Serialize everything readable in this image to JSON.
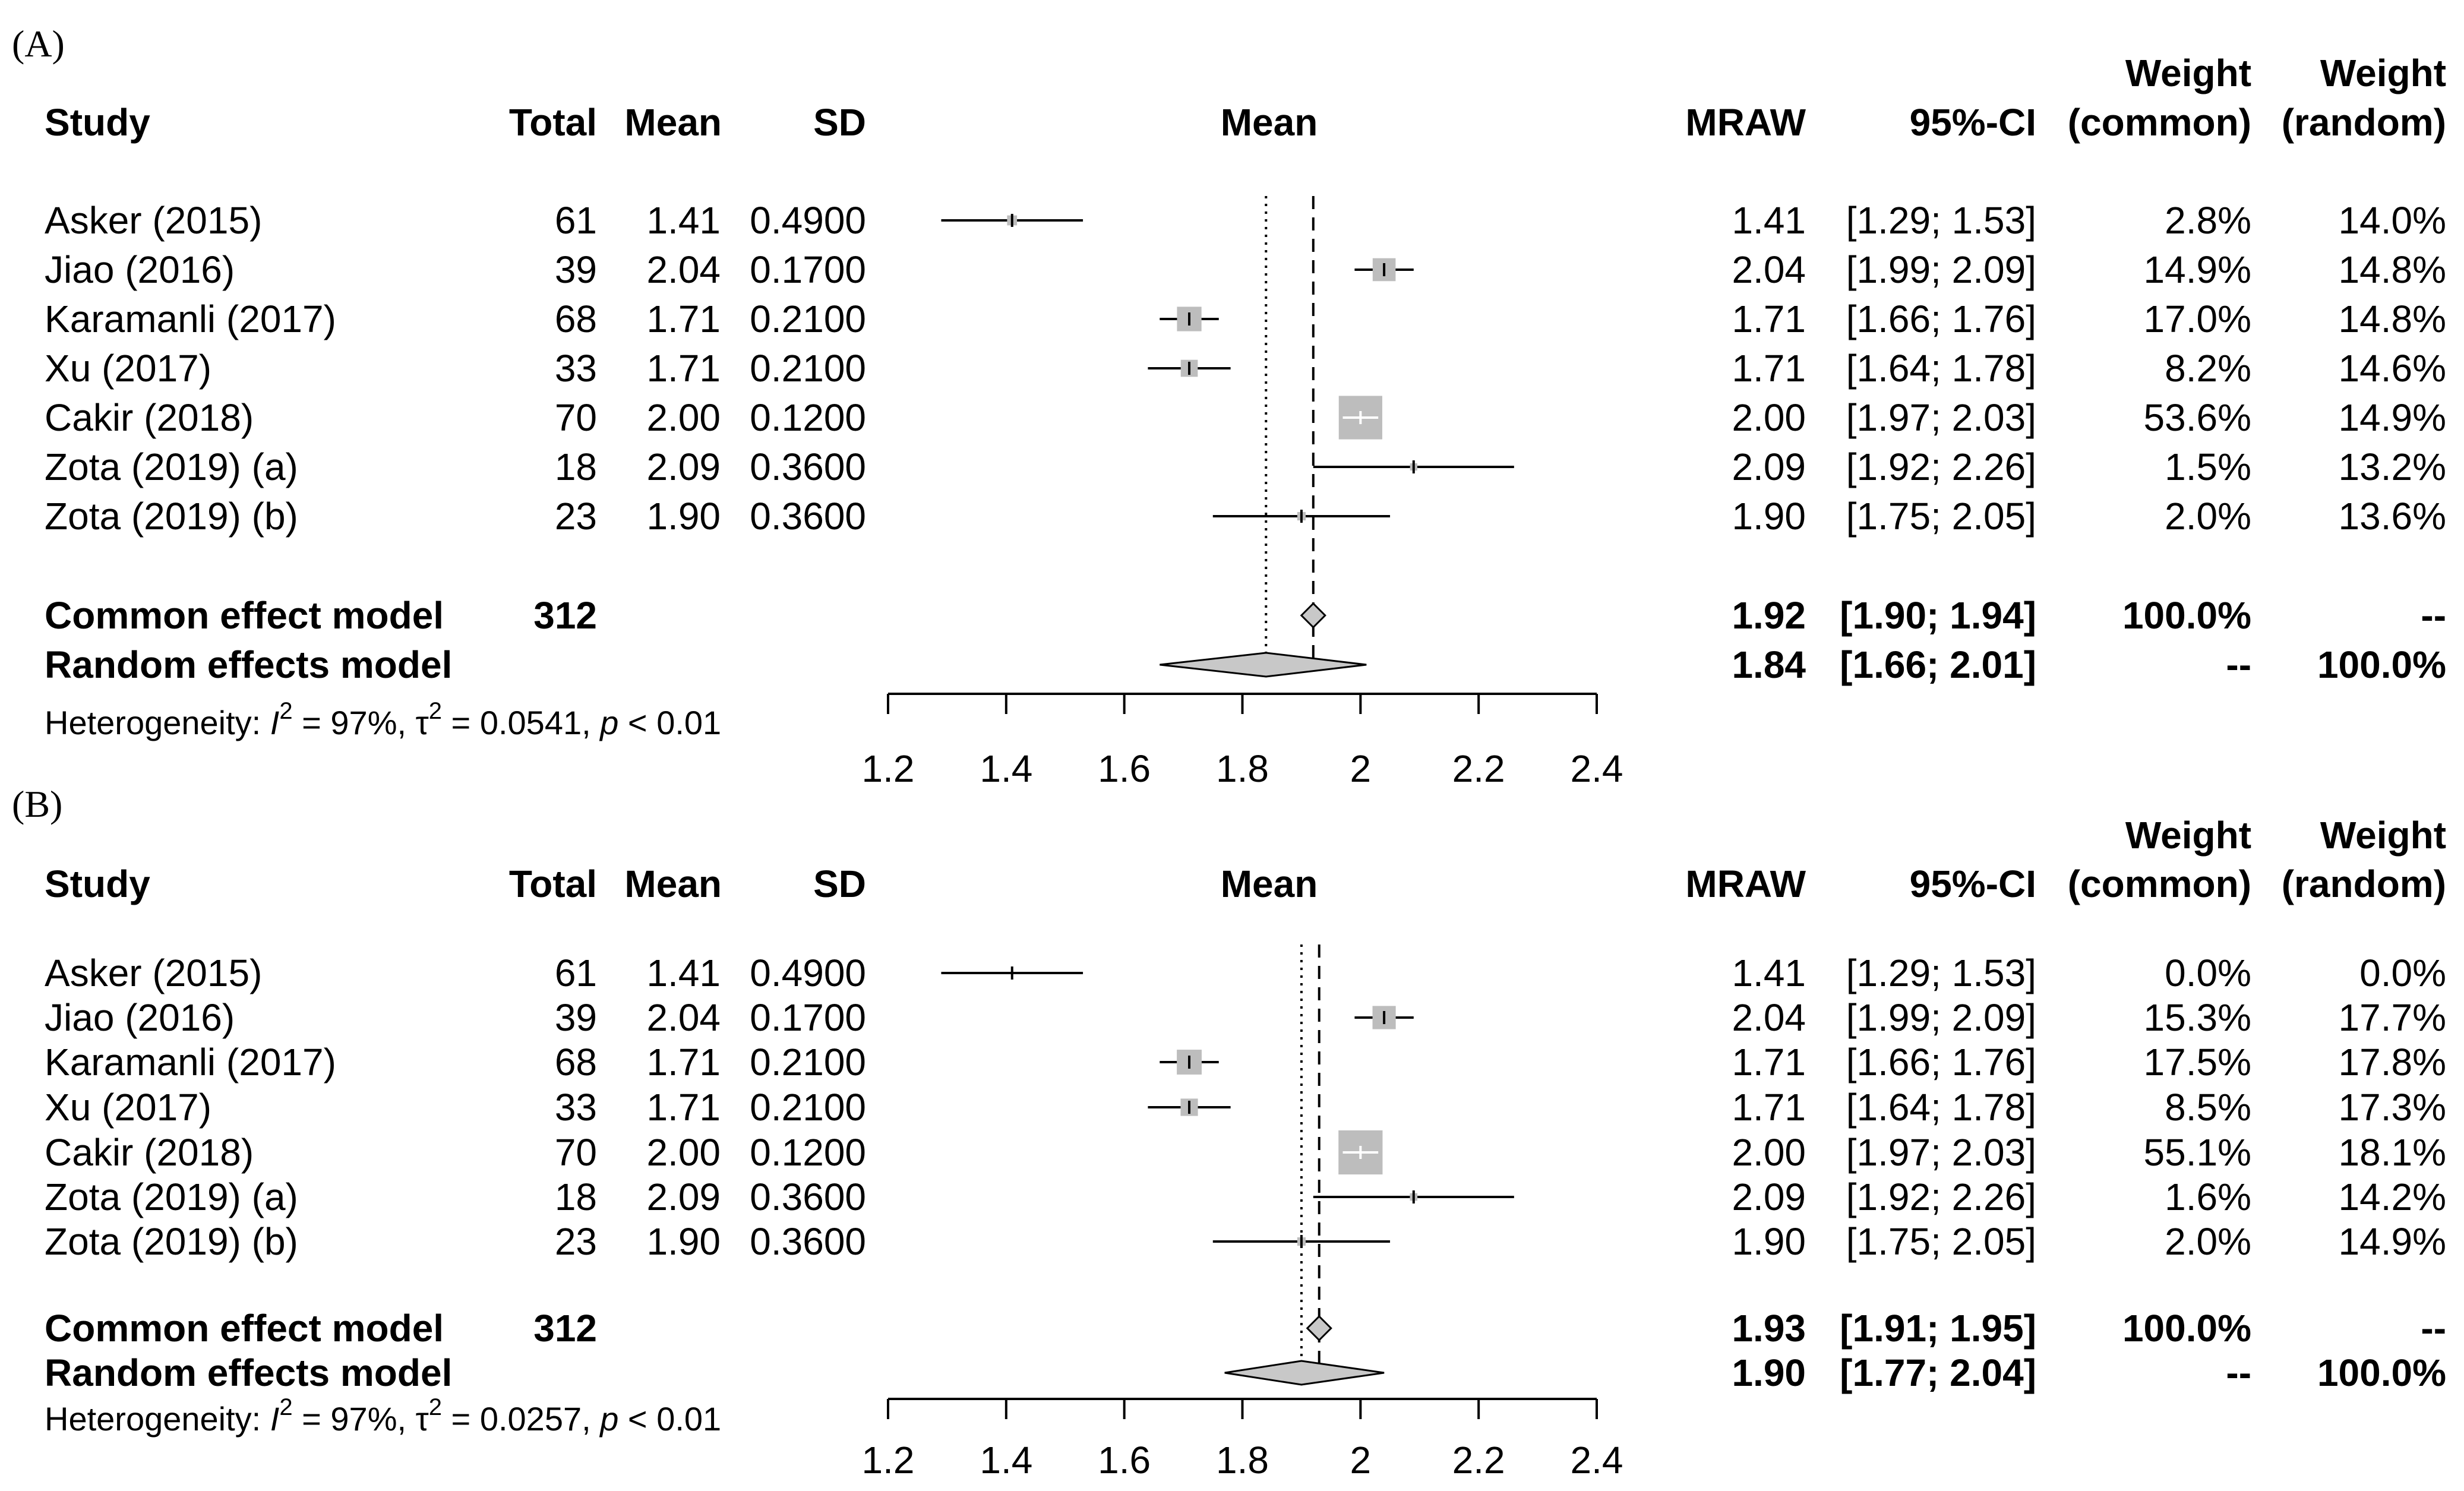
{
  "chart_data": [
    {
      "type": "forest",
      "panel_label": "(A)",
      "headers": {
        "study": "Study",
        "total": "Total",
        "mean": "Mean",
        "sd": "SD",
        "plot": "Mean",
        "mraw": "MRAW",
        "ci": "95%-CI",
        "w_common_1": "Weight",
        "w_common_2": "(common)",
        "w_random_1": "Weight",
        "w_random_2": "(random)"
      },
      "studies": [
        {
          "name": "Asker (2015)",
          "total": "61",
          "mean_txt": "1.41",
          "sd": "0.4900",
          "mraw": "1.41",
          "ci": "[1.29; 1.53]",
          "w_common": "2.8%",
          "w_random": "14.0%",
          "est": 1.41,
          "lo": 1.29,
          "hi": 1.53,
          "w": 2.8
        },
        {
          "name": "Jiao (2016)",
          "total": "39",
          "mean_txt": "2.04",
          "sd": "0.1700",
          "mraw": "2.04",
          "ci": "[1.99; 2.09]",
          "w_common": "14.9%",
          "w_random": "14.8%",
          "est": 2.04,
          "lo": 1.99,
          "hi": 2.09,
          "w": 14.9
        },
        {
          "name": "Karamanli (2017)",
          "total": "68",
          "mean_txt": "1.71",
          "sd": "0.2100",
          "mraw": "1.71",
          "ci": "[1.66; 1.76]",
          "w_common": "17.0%",
          "w_random": "14.8%",
          "est": 1.71,
          "lo": 1.66,
          "hi": 1.76,
          "w": 17.0
        },
        {
          "name": "Xu (2017)",
          "total": "33",
          "mean_txt": "1.71",
          "sd": "0.2100",
          "mraw": "1.71",
          "ci": "[1.64; 1.78]",
          "w_common": "8.2%",
          "w_random": "14.6%",
          "est": 1.71,
          "lo": 1.64,
          "hi": 1.78,
          "w": 8.2
        },
        {
          "name": "Cakir (2018)",
          "total": "70",
          "mean_txt": "2.00",
          "sd": "0.1200",
          "mraw": "2.00",
          "ci": "[1.97; 2.03]",
          "w_common": "53.6%",
          "w_random": "14.9%",
          "est": 2.0,
          "lo": 1.97,
          "hi": 2.03,
          "w": 53.6
        },
        {
          "name": "Zota (2019) (a)",
          "total": "18",
          "mean_txt": "2.09",
          "sd": "0.3600",
          "mraw": "2.09",
          "ci": "[1.92; 2.26]",
          "w_common": "1.5%",
          "w_random": "13.2%",
          "est": 2.09,
          "lo": 1.92,
          "hi": 2.26,
          "w": 1.5
        },
        {
          "name": "Zota (2019) (b)",
          "total": "23",
          "mean_txt": "1.90",
          "sd": "0.3600",
          "mraw": "1.90",
          "ci": "[1.75; 2.05]",
          "w_common": "2.0%",
          "w_random": "13.6%",
          "est": 1.9,
          "lo": 1.75,
          "hi": 2.05,
          "w": 2.0
        }
      ],
      "common": {
        "label": "Common effect model",
        "total": "312",
        "mraw": "1.92",
        "ci": "[1.90; 1.94]",
        "w_common": "100.0%",
        "w_random": "--",
        "est": 1.92,
        "lo": 1.9,
        "hi": 1.94
      },
      "random": {
        "label": "Random effects model",
        "mraw": "1.84",
        "ci": "[1.66; 2.01]",
        "w_common": "--",
        "w_random": "100.0%",
        "est": 1.84,
        "lo": 1.66,
        "hi": 2.01
      },
      "heterogeneity": {
        "prefix": "Heterogeneity: ",
        "i2_letter": "I",
        "sup": "2",
        "i2_value": " = 97%, ",
        "tau_letter": "τ",
        "tau_value": " = 0.0541, ",
        "p_letter": "p",
        "p_value": " < 0.01"
      },
      "xticks": [
        1.2,
        1.4,
        1.6,
        1.8,
        2,
        2.2,
        2.4
      ],
      "xlim": [
        1.2,
        2.4
      ]
    },
    {
      "type": "forest",
      "panel_label": "(B)",
      "headers": {
        "study": "Study",
        "total": "Total",
        "mean": "Mean",
        "sd": "SD",
        "plot": "Mean",
        "mraw": "MRAW",
        "ci": "95%-CI",
        "w_common_1": "Weight",
        "w_common_2": "(common)",
        "w_random_1": "Weight",
        "w_random_2": "(random)"
      },
      "studies": [
        {
          "name": "Asker (2015)",
          "total": "61",
          "mean_txt": "1.41",
          "sd": "0.4900",
          "mraw": "1.41",
          "ci": "[1.29; 1.53]",
          "w_common": "0.0%",
          "w_random": "0.0%",
          "est": 1.41,
          "lo": 1.29,
          "hi": 1.53,
          "w": 0
        },
        {
          "name": "Jiao (2016)",
          "total": "39",
          "mean_txt": "2.04",
          "sd": "0.1700",
          "mraw": "2.04",
          "ci": "[1.99; 2.09]",
          "w_common": "15.3%",
          "w_random": "17.7%",
          "est": 2.04,
          "lo": 1.99,
          "hi": 2.09,
          "w": 15.3
        },
        {
          "name": "Karamanli (2017)",
          "total": "68",
          "mean_txt": "1.71",
          "sd": "0.2100",
          "mraw": "1.71",
          "ci": "[1.66; 1.76]",
          "w_common": "17.5%",
          "w_random": "17.8%",
          "est": 1.71,
          "lo": 1.66,
          "hi": 1.76,
          "w": 17.5
        },
        {
          "name": "Xu (2017)",
          "total": "33",
          "mean_txt": "1.71",
          "sd": "0.2100",
          "mraw": "1.71",
          "ci": "[1.64; 1.78]",
          "w_common": "8.5%",
          "w_random": "17.3%",
          "est": 1.71,
          "lo": 1.64,
          "hi": 1.78,
          "w": 8.5
        },
        {
          "name": "Cakir (2018)",
          "total": "70",
          "mean_txt": "2.00",
          "sd": "0.1200",
          "mraw": "2.00",
          "ci": "[1.97; 2.03]",
          "w_common": "55.1%",
          "w_random": "18.1%",
          "est": 2.0,
          "lo": 1.97,
          "hi": 2.03,
          "w": 55.1
        },
        {
          "name": "Zota (2019) (a)",
          "total": "18",
          "mean_txt": "2.09",
          "sd": "0.3600",
          "mraw": "2.09",
          "ci": "[1.92; 2.26]",
          "w_common": "1.6%",
          "w_random": "14.2%",
          "est": 2.09,
          "lo": 1.92,
          "hi": 2.26,
          "w": 1.6
        },
        {
          "name": "Zota (2019) (b)",
          "total": "23",
          "mean_txt": "1.90",
          "sd": "0.3600",
          "mraw": "1.90",
          "ci": "[1.75; 2.05]",
          "w_common": "2.0%",
          "w_random": "14.9%",
          "est": 1.9,
          "lo": 1.75,
          "hi": 2.05,
          "w": 2.0
        }
      ],
      "common": {
        "label": "Common effect model",
        "total": "312",
        "mraw": "1.93",
        "ci": "[1.91; 1.95]",
        "w_common": "100.0%",
        "w_random": "--",
        "est": 1.93,
        "lo": 1.91,
        "hi": 1.95
      },
      "random": {
        "label": "Random effects model",
        "mraw": "1.90",
        "ci": "[1.77; 2.04]",
        "w_common": "--",
        "w_random": "100.0%",
        "est": 1.9,
        "lo": 1.77,
        "hi": 2.04
      },
      "heterogeneity": {
        "prefix": "Heterogeneity: ",
        "i2_letter": "I",
        "sup": "2",
        "i2_value": " = 97%, ",
        "tau_letter": "τ",
        "tau_value": " = 0.0257, ",
        "p_letter": "p",
        "p_value": " < 0.01"
      },
      "xticks": [
        1.2,
        1.4,
        1.6,
        1.8,
        2,
        2.2,
        2.4
      ],
      "xlim": [
        1.2,
        2.4
      ]
    }
  ],
  "colors": {
    "square": "#bdbdbd",
    "diamond": "#c8c8c8",
    "line": "#000000"
  }
}
